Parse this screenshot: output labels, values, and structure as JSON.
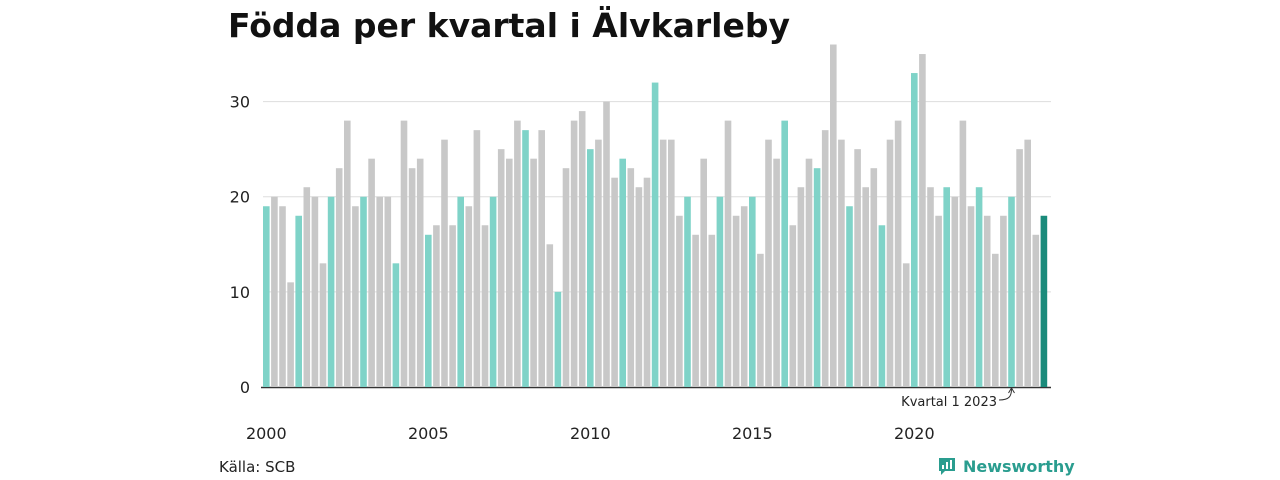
{
  "title": "Födda per kvartal i Älvkarleby",
  "source": "Källa: SCB",
  "brand": {
    "name": "Newsworthy",
    "icon": "newsworthy-logo-icon"
  },
  "colors": {
    "q1": "#7fd3c8",
    "other": "#c8c8c8",
    "highlight": "#1a8b7b",
    "grid": "#dddddd",
    "axis": "#333333"
  },
  "chart_data": {
    "type": "bar",
    "title": "Födda per kvartal i Älvkarleby",
    "xlabel": "",
    "ylabel": "",
    "ylim": [
      0,
      37
    ],
    "yticks": [
      0,
      10,
      20,
      30
    ],
    "xticks": [
      "2000",
      "2005",
      "2010",
      "2015",
      "2020"
    ],
    "grid": true,
    "annotation": {
      "text": "Kvartal 1 2023",
      "target": "2023 Q1"
    },
    "series": [
      {
        "year": 2000,
        "values": [
          19,
          20,
          19,
          11
        ]
      },
      {
        "year": 2001,
        "values": [
          18,
          21,
          20,
          13
        ]
      },
      {
        "year": 2002,
        "values": [
          20,
          23,
          28,
          19
        ]
      },
      {
        "year": 2003,
        "values": [
          20,
          24,
          20,
          20
        ]
      },
      {
        "year": 2004,
        "values": [
          13,
          28,
          23,
          24
        ]
      },
      {
        "year": 2005,
        "values": [
          16,
          17,
          26,
          17
        ]
      },
      {
        "year": 2006,
        "values": [
          20,
          19,
          27,
          17
        ]
      },
      {
        "year": 2007,
        "values": [
          20,
          25,
          24,
          28
        ]
      },
      {
        "year": 2008,
        "values": [
          27,
          24,
          27,
          15
        ]
      },
      {
        "year": 2009,
        "values": [
          10,
          23,
          28,
          29
        ]
      },
      {
        "year": 2010,
        "values": [
          25,
          26,
          30,
          22
        ]
      },
      {
        "year": 2011,
        "values": [
          24,
          23,
          21,
          22
        ]
      },
      {
        "year": 2012,
        "values": [
          32,
          26,
          26,
          18
        ]
      },
      {
        "year": 2013,
        "values": [
          20,
          16,
          24,
          16
        ]
      },
      {
        "year": 2014,
        "values": [
          20,
          28,
          18,
          19
        ]
      },
      {
        "year": 2015,
        "values": [
          20,
          14,
          26,
          24
        ]
      },
      {
        "year": 2016,
        "values": [
          28,
          17,
          21,
          24
        ]
      },
      {
        "year": 2017,
        "values": [
          23,
          27,
          36,
          26
        ]
      },
      {
        "year": 2018,
        "values": [
          19,
          25,
          21,
          23
        ]
      },
      {
        "year": 2019,
        "values": [
          17,
          26,
          28,
          13
        ]
      },
      {
        "year": 2020,
        "values": [
          33,
          35,
          21,
          18
        ]
      },
      {
        "year": 2021,
        "values": [
          21,
          20,
          28,
          19
        ]
      },
      {
        "year": 2022,
        "values": [
          21,
          18,
          14,
          18
        ]
      },
      {
        "year": 2023,
        "values": [
          20,
          25,
          26,
          16
        ]
      },
      {
        "year": 2024,
        "values": [
          18
        ]
      }
    ]
  }
}
